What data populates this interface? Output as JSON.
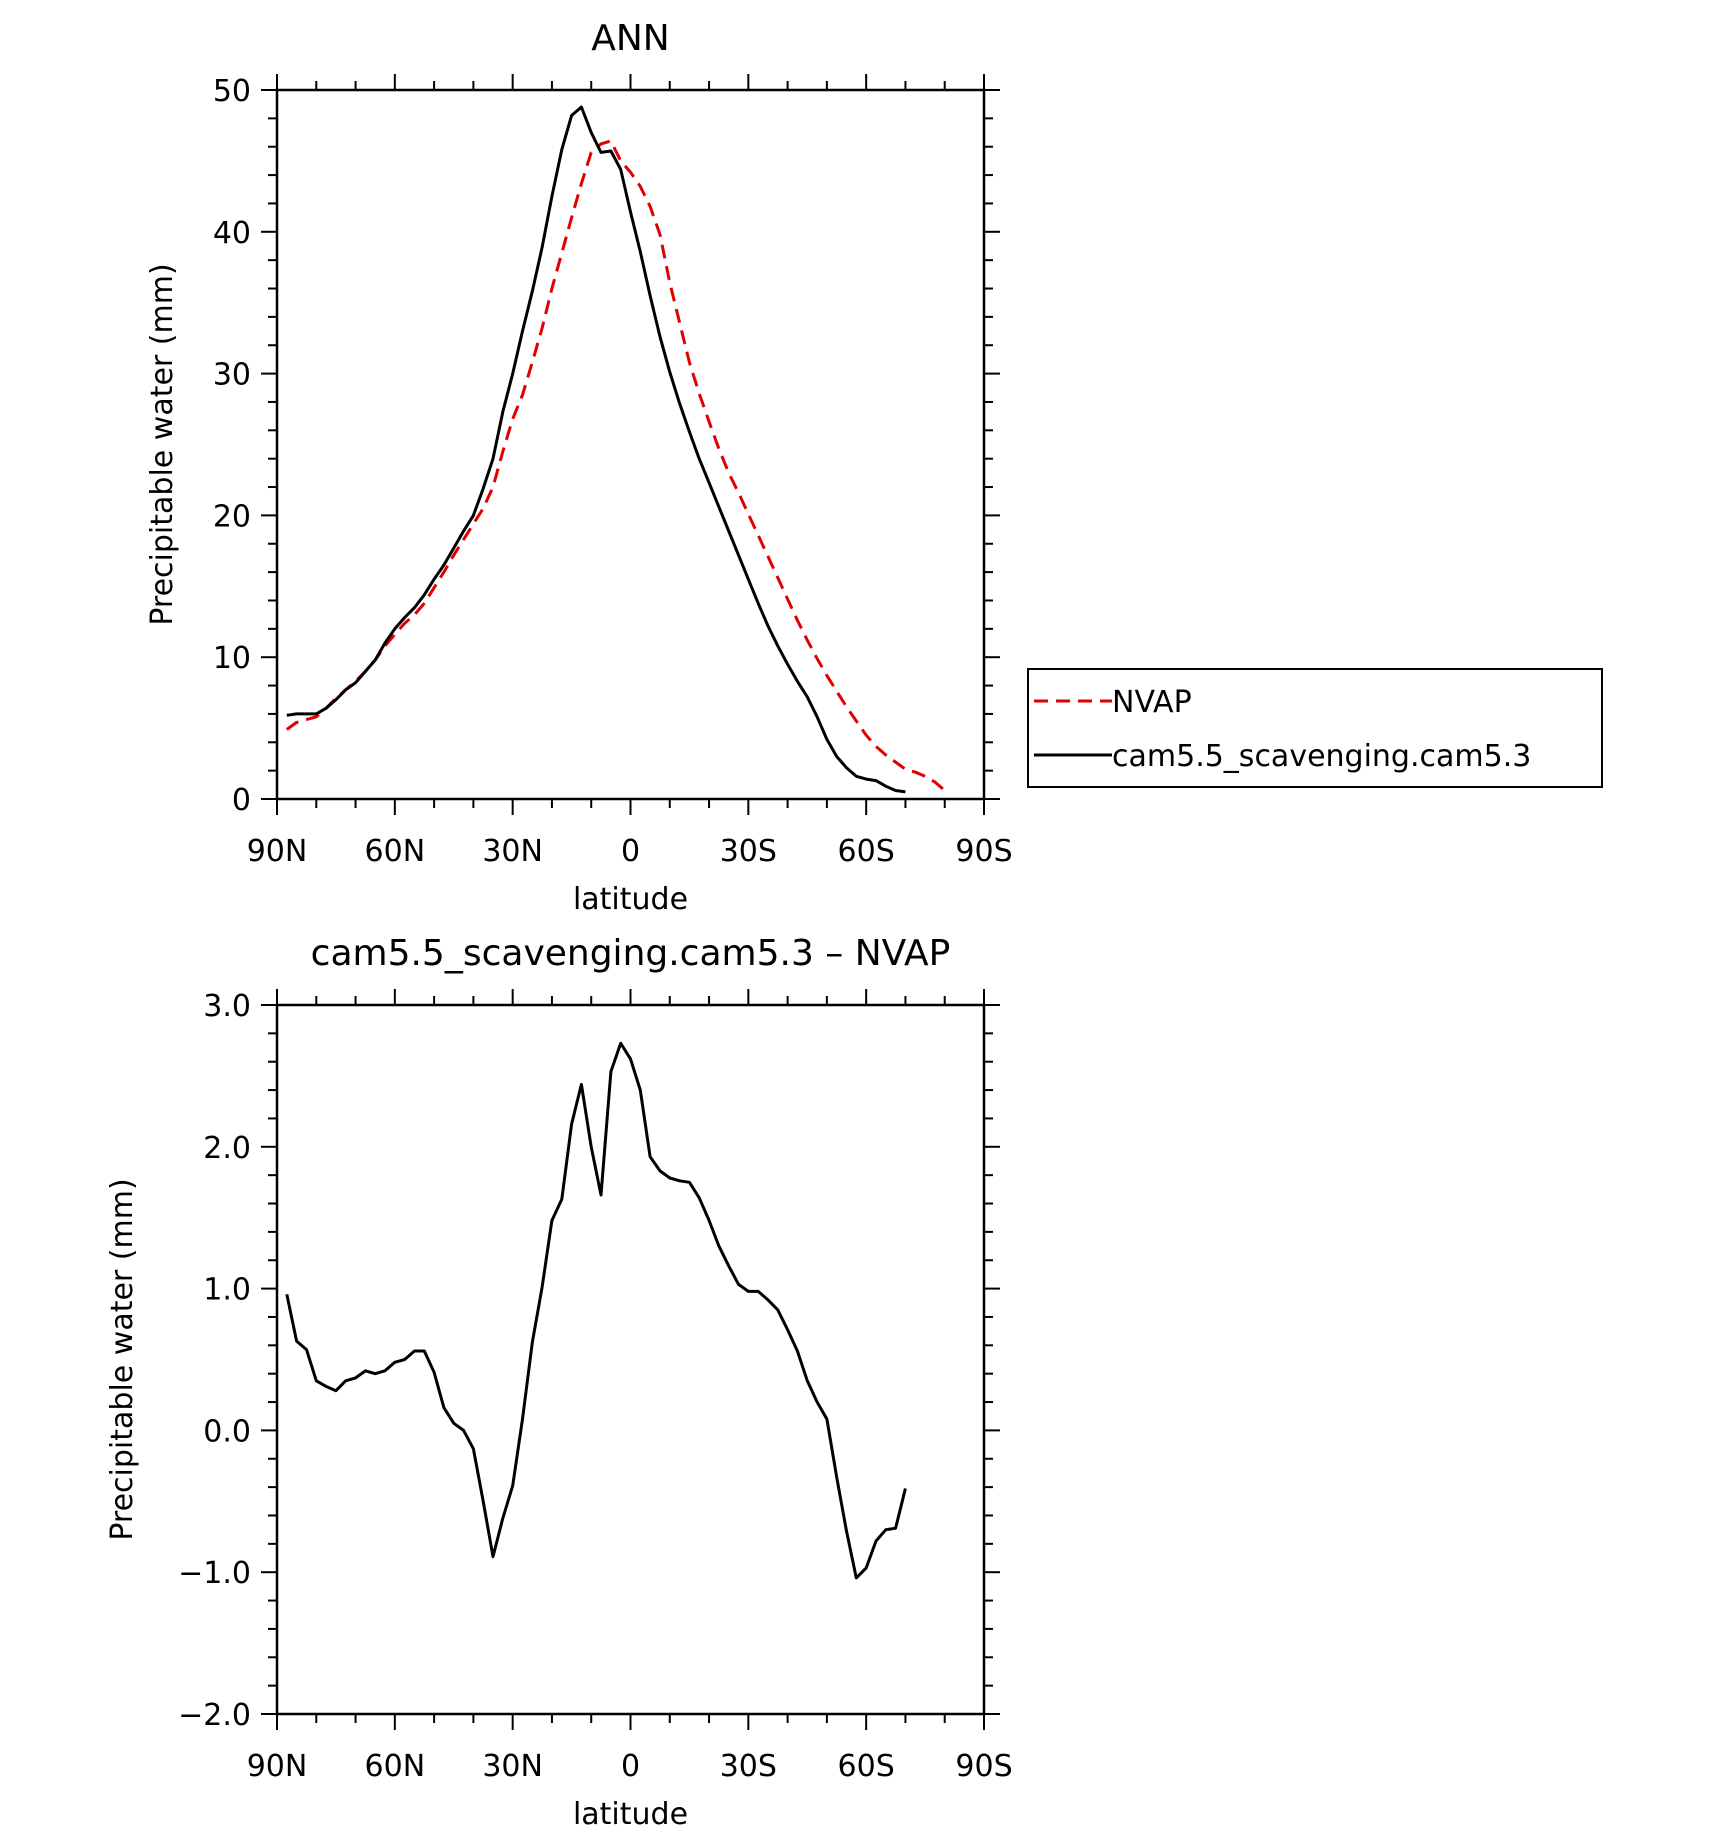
{
  "chart_data": [
    {
      "type": "line",
      "title": "ANN",
      "xlabel": "latitude",
      "ylabel": "Precipitable water (mm)",
      "xlim": [
        90,
        -90
      ],
      "ylim": [
        0,
        50
      ],
      "xticks": [
        {
          "value": 90,
          "label": "90N"
        },
        {
          "value": 60,
          "label": "60N"
        },
        {
          "value": 30,
          "label": "30N"
        },
        {
          "value": 0,
          "label": "0"
        },
        {
          "value": -30,
          "label": "30S"
        },
        {
          "value": -60,
          "label": "60S"
        },
        {
          "value": -90,
          "label": "90S"
        }
      ],
      "yticks": [
        {
          "value": 0,
          "label": "0"
        },
        {
          "value": 10,
          "label": "10"
        },
        {
          "value": 20,
          "label": "20"
        },
        {
          "value": 30,
          "label": "30"
        },
        {
          "value": 40,
          "label": "40"
        },
        {
          "value": 50,
          "label": "50"
        }
      ],
      "legend": {
        "placement": "right"
      },
      "series": [
        {
          "name": "NVAP",
          "color": "#e00000",
          "style": "dashed",
          "points": [
            [
              87.5,
              4.9
            ],
            [
              85,
              5.4
            ],
            [
              82.5,
              5.6
            ],
            [
              80,
              5.8
            ],
            [
              77.5,
              6.4
            ],
            [
              75,
              7.1
            ],
            [
              72.5,
              7.7
            ],
            [
              70,
              8.3
            ],
            [
              67.5,
              9.0
            ],
            [
              65,
              9.8
            ],
            [
              62.5,
              10.8
            ],
            [
              60,
              11.6
            ],
            [
              57.5,
              12.4
            ],
            [
              55,
              13.0
            ],
            [
              52.5,
              13.8
            ],
            [
              50,
              14.9
            ],
            [
              47.5,
              16.0
            ],
            [
              45,
              17.2
            ],
            [
              42.5,
              18.3
            ],
            [
              40,
              19.4
            ],
            [
              37.5,
              20.5
            ],
            [
              35,
              22.0
            ],
            [
              32.5,
              24.5
            ],
            [
              30,
              26.8
            ],
            [
              27.5,
              28.5
            ],
            [
              25,
              30.8
            ],
            [
              22.5,
              33.2
            ],
            [
              20,
              36.0
            ],
            [
              17.5,
              38.5
            ],
            [
              15,
              41.0
            ],
            [
              12.5,
              43.4
            ],
            [
              10,
              45.6
            ],
            [
              7.5,
              46.2
            ],
            [
              5,
              46.4
            ],
            [
              2.5,
              45.0
            ],
            [
              0,
              44.2
            ],
            [
              -2.5,
              43.2
            ],
            [
              -5,
              41.8
            ],
            [
              -7.5,
              39.8
            ],
            [
              -10,
              36.4
            ],
            [
              -12.5,
              33.6
            ],
            [
              -15,
              30.8
            ],
            [
              -17.5,
              28.6
            ],
            [
              -20,
              26.6
            ],
            [
              -22.5,
              24.7
            ],
            [
              -25,
              23.0
            ],
            [
              -27.5,
              21.6
            ],
            [
              -30,
              20.1
            ],
            [
              -32.5,
              18.6
            ],
            [
              -35,
              17.1
            ],
            [
              -37.5,
              15.6
            ],
            [
              -40,
              14.1
            ],
            [
              -42.5,
              12.6
            ],
            [
              -45,
              11.2
            ],
            [
              -47.5,
              9.9
            ],
            [
              -50,
              8.7
            ],
            [
              -52.5,
              7.6
            ],
            [
              -55,
              6.5
            ],
            [
              -57.5,
              5.5
            ],
            [
              -60,
              4.5
            ],
            [
              -62.5,
              3.7
            ],
            [
              -65,
              3.1
            ],
            [
              -67.5,
              2.6
            ],
            [
              -70,
              2.1
            ],
            [
              -72.5,
              1.9
            ],
            [
              -75,
              1.6
            ],
            [
              -77.5,
              1.2
            ],
            [
              -80,
              0.6
            ]
          ]
        },
        {
          "name": "cam5.5_scavenging.cam5.3",
          "color": "#000000",
          "style": "solid",
          "points": [
            [
              87.5,
              5.9
            ],
            [
              85,
              6.0
            ],
            [
              82.5,
              6.0
            ],
            [
              80,
              6.0
            ],
            [
              77.5,
              6.4
            ],
            [
              75,
              7.0
            ],
            [
              72.5,
              7.7
            ],
            [
              70,
              8.2
            ],
            [
              67.5,
              9.0
            ],
            [
              65,
              9.8
            ],
            [
              62.5,
              11.0
            ],
            [
              60,
              12.0
            ],
            [
              57.5,
              12.8
            ],
            [
              55,
              13.5
            ],
            [
              52.5,
              14.4
            ],
            [
              50,
              15.5
            ],
            [
              47.5,
              16.5
            ],
            [
              45,
              17.7
            ],
            [
              42.5,
              18.9
            ],
            [
              40,
              20.0
            ],
            [
              37.5,
              21.9
            ],
            [
              35,
              24.0
            ],
            [
              32.5,
              27.3
            ],
            [
              30,
              30.0
            ],
            [
              27.5,
              33.0
            ],
            [
              25,
              35.8
            ],
            [
              22.5,
              38.9
            ],
            [
              20,
              42.5
            ],
            [
              17.5,
              45.8
            ],
            [
              15,
              48.2
            ],
            [
              12.5,
              48.8
            ],
            [
              10,
              47.0
            ],
            [
              7.5,
              45.6
            ],
            [
              5,
              45.7
            ],
            [
              2.5,
              44.4
            ],
            [
              0,
              41.4
            ],
            [
              -2.5,
              38.6
            ],
            [
              -5,
              35.5
            ],
            [
              -7.5,
              32.6
            ],
            [
              -10,
              30.1
            ],
            [
              -12.5,
              27.9
            ],
            [
              -15,
              25.9
            ],
            [
              -17.5,
              24.0
            ],
            [
              -20,
              22.3
            ],
            [
              -22.5,
              20.6
            ],
            [
              -25,
              18.9
            ],
            [
              -27.5,
              17.2
            ],
            [
              -30,
              15.5
            ],
            [
              -32.5,
              13.8
            ],
            [
              -35,
              12.2
            ],
            [
              -37.5,
              10.8
            ],
            [
              -40,
              9.5
            ],
            [
              -42.5,
              8.3
            ],
            [
              -45,
              7.2
            ],
            [
              -47.5,
              5.8
            ],
            [
              -50,
              4.2
            ],
            [
              -52.5,
              3.0
            ],
            [
              -55,
              2.2
            ],
            [
              -57.5,
              1.6
            ],
            [
              -60,
              1.4
            ],
            [
              -62.5,
              1.3
            ],
            [
              -65,
              0.9
            ],
            [
              -67.5,
              0.6
            ],
            [
              -70,
              0.5
            ]
          ]
        }
      ]
    },
    {
      "type": "line",
      "title": "cam5.5_scavenging.cam5.3 – NVAP",
      "xlabel": "latitude",
      "ylabel": "Precipitable water (mm)",
      "xlim": [
        90,
        -90
      ],
      "ylim": [
        -2.0,
        3.0
      ],
      "xticks": [
        {
          "value": 90,
          "label": "90N"
        },
        {
          "value": 60,
          "label": "60N"
        },
        {
          "value": 30,
          "label": "30N"
        },
        {
          "value": 0,
          "label": "0"
        },
        {
          "value": -30,
          "label": "30S"
        },
        {
          "value": -60,
          "label": "60S"
        },
        {
          "value": -90,
          "label": "90S"
        }
      ],
      "yticks": [
        {
          "value": -2.0,
          "label": "−2.0"
        },
        {
          "value": -1.0,
          "label": "−1.0"
        },
        {
          "value": 0.0,
          "label": "0.0"
        },
        {
          "value": 1.0,
          "label": "1.0"
        },
        {
          "value": 2.0,
          "label": "2.0"
        },
        {
          "value": 3.0,
          "label": "3.0"
        }
      ],
      "series": [
        {
          "color": "#000000",
          "style": "solid",
          "points": [
            [
              87.5,
              0.96
            ],
            [
              85,
              0.63
            ],
            [
              82.5,
              0.57
            ],
            [
              80,
              0.35
            ],
            [
              77.5,
              0.31
            ],
            [
              75,
              0.28
            ],
            [
              72.5,
              0.35
            ],
            [
              70,
              0.37
            ],
            [
              67.5,
              0.42
            ],
            [
              65,
              0.4
            ],
            [
              62.5,
              0.42
            ],
            [
              60,
              0.48
            ],
            [
              57.5,
              0.5
            ],
            [
              55,
              0.56
            ],
            [
              52.5,
              0.56
            ],
            [
              50,
              0.41
            ],
            [
              47.5,
              0.16
            ],
            [
              45,
              0.05
            ],
            [
              42.5,
              0.0
            ],
            [
              40,
              -0.13
            ],
            [
              37.5,
              -0.5
            ],
            [
              35,
              -0.89
            ],
            [
              32.5,
              -0.62
            ],
            [
              30,
              -0.39
            ],
            [
              27.5,
              0.08
            ],
            [
              25,
              0.62
            ],
            [
              22.5,
              1.01
            ],
            [
              20,
              1.48
            ],
            [
              17.5,
              1.63
            ],
            [
              15,
              2.16
            ],
            [
              12.5,
              2.44
            ],
            [
              10,
              2.0
            ],
            [
              7.5,
              1.66
            ],
            [
              5,
              2.53
            ],
            [
              2.5,
              2.73
            ],
            [
              0,
              2.62
            ],
            [
              -2.5,
              2.4
            ],
            [
              -5,
              1.93
            ],
            [
              -7.5,
              1.83
            ],
            [
              -10,
              1.78
            ],
            [
              -12.5,
              1.76
            ],
            [
              -15,
              1.75
            ],
            [
              -17.5,
              1.64
            ],
            [
              -20,
              1.48
            ],
            [
              -22.5,
              1.3
            ],
            [
              -25,
              1.16
            ],
            [
              -27.5,
              1.03
            ],
            [
              -30,
              0.98
            ],
            [
              -32.5,
              0.98
            ],
            [
              -35,
              0.92
            ],
            [
              -37.5,
              0.85
            ],
            [
              -40,
              0.71
            ],
            [
              -42.5,
              0.56
            ],
            [
              -45,
              0.35
            ],
            [
              -47.5,
              0.2
            ],
            [
              -50,
              0.08
            ],
            [
              -52.5,
              -0.33
            ],
            [
              -55,
              -0.71
            ],
            [
              -57.5,
              -1.04
            ],
            [
              -60,
              -0.97
            ],
            [
              -62.5,
              -0.78
            ],
            [
              -65,
              -0.7
            ],
            [
              -67.5,
              -0.69
            ],
            [
              -70,
              -0.41
            ]
          ]
        }
      ]
    }
  ]
}
